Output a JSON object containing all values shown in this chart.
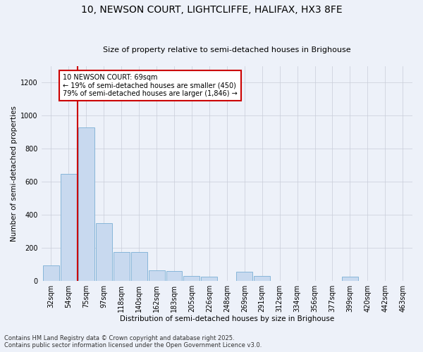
{
  "title_line1": "10, NEWSON COURT, LIGHTCLIFFE, HALIFAX, HX3 8FE",
  "title_line2": "Size of property relative to semi-detached houses in Brighouse",
  "xlabel": "Distribution of semi-detached houses by size in Brighouse",
  "ylabel": "Number of semi-detached properties",
  "bar_labels": [
    "32sqm",
    "54sqm",
    "75sqm",
    "97sqm",
    "118sqm",
    "140sqm",
    "162sqm",
    "183sqm",
    "205sqm",
    "226sqm",
    "248sqm",
    "269sqm",
    "291sqm",
    "312sqm",
    "334sqm",
    "356sqm",
    "377sqm",
    "399sqm",
    "420sqm",
    "442sqm",
    "463sqm"
  ],
  "bar_values": [
    95,
    650,
    930,
    350,
    175,
    175,
    65,
    60,
    30,
    25,
    0,
    55,
    30,
    0,
    0,
    0,
    0,
    25,
    0,
    0,
    0
  ],
  "bar_color": "#c8d9ef",
  "bar_edge_color": "#7aafd4",
  "annotation_title": "10 NEWSON COURT: 69sqm",
  "annotation_line2": "← 19% of semi-detached houses are smaller (450)",
  "annotation_line3": "79% of semi-detached houses are larger (1,846) →",
  "vline_x": 1.5,
  "vline_color": "#cc0000",
  "ylim": [
    0,
    1300
  ],
  "yticks": [
    0,
    200,
    400,
    600,
    800,
    1000,
    1200
  ],
  "footer_line1": "Contains HM Land Registry data © Crown copyright and database right 2025.",
  "footer_line2": "Contains public sector information licensed under the Open Government Licence v3.0.",
  "bg_color": "#edf1f9",
  "annotation_box_color": "#ffffff",
  "annotation_box_edge": "#cc0000",
  "title1_fontsize": 10,
  "title2_fontsize": 8,
  "axis_label_fontsize": 7.5,
  "tick_fontsize": 7,
  "footer_fontsize": 6
}
